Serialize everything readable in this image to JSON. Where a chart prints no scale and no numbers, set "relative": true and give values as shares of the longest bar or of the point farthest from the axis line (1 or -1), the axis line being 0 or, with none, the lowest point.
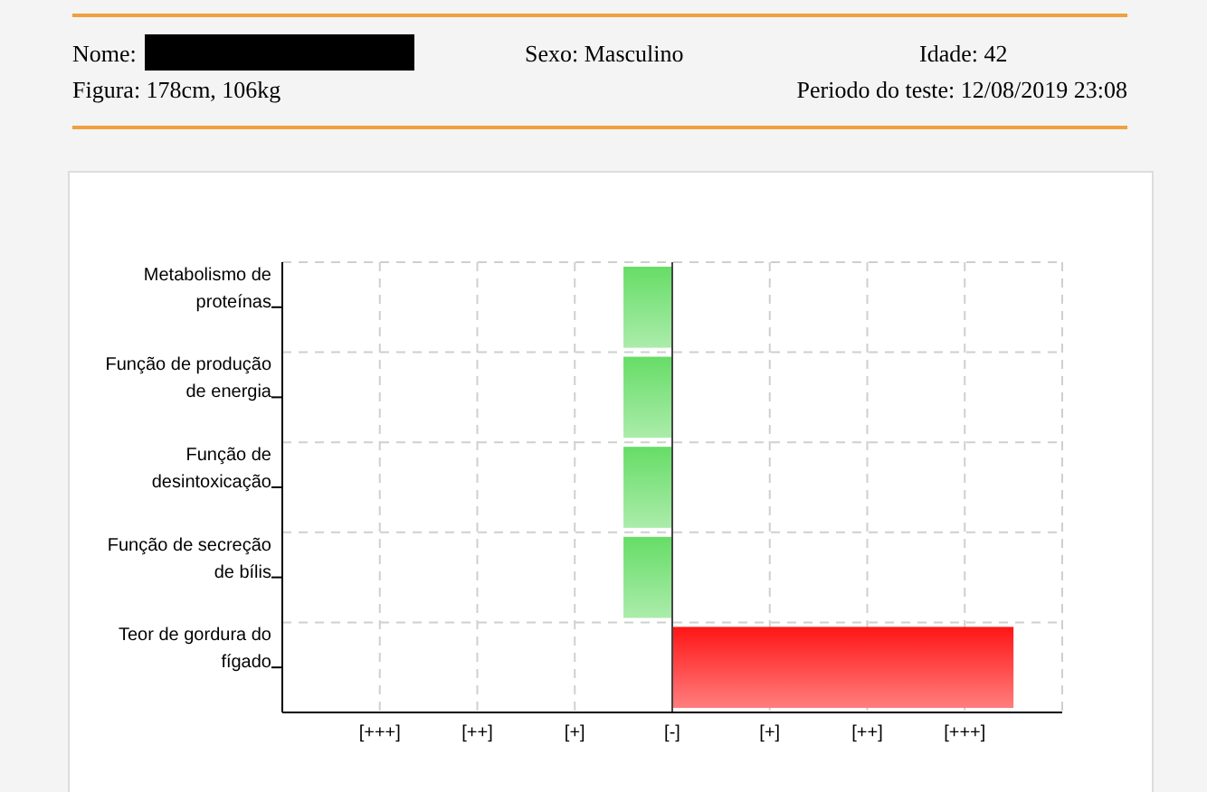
{
  "chart_data": {
    "type": "bar",
    "orientation": "horizontal",
    "annotations": [
      "Nome:",
      "Sexo: Masculino",
      "Idade: 42",
      "Figura: 178cm, 106kg",
      "Periodo do teste: 12/08/2019 23:08",
      "[+++]",
      "[++]",
      "[+]",
      "[-]",
      "[+]",
      "[++]",
      "[+++]"
    ],
    "relative": true,
    "categories": [
      "Metabolismo de proteínas",
      "Função de produção de energia",
      "Função de desintoxicação",
      "Função de secreção de bílis",
      "Teor de gordura do fígado"
    ],
    "values": [
      -0.143,
      -0.143,
      -0.143,
      -0.143,
      1
    ],
    "colors": [
      "#66dd66",
      "#66dd66",
      "#66dd66",
      "#66dd66",
      "#ff1515"
    ],
    "grid": true
  }
}
